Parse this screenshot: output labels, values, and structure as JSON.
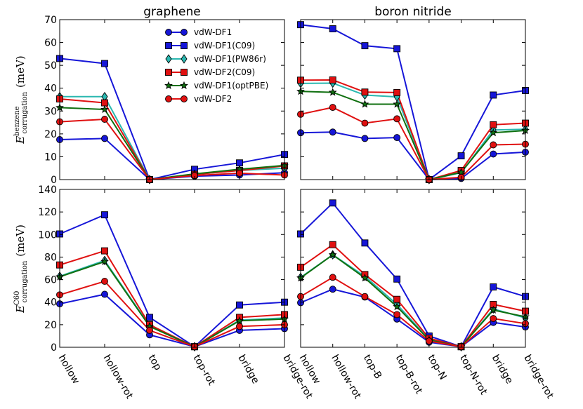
{
  "figure": {
    "y_labels": [
      {
        "main": "E",
        "sup": "benzene",
        "sub": "corrugation",
        "unit": "(meV)"
      },
      {
        "main": "E",
        "sup": "C60",
        "sub": "corrugation",
        "unit": "(meV)"
      }
    ]
  },
  "legend": [
    {
      "name": "vdW-DF1",
      "color": "#1616d8",
      "marker": "circle"
    },
    {
      "name": "vdW-DF1(C09)",
      "color": "#1616d8",
      "marker": "square"
    },
    {
      "name": "vdW-DF1(PW86r)",
      "color": "#2ab8b0",
      "marker": "diamond"
    },
    {
      "name": "vdW-DF2(C09)",
      "color": "#e01010",
      "marker": "square"
    },
    {
      "name": "vdW-DF1(optPBE)",
      "color": "#107010",
      "marker": "star"
    },
    {
      "name": "vdW-DF2",
      "color": "#e01010",
      "marker": "circle"
    }
  ],
  "chart_data": [
    {
      "type": "line",
      "panel": "top-left",
      "title": "graphene",
      "categories": [
        "hollow",
        "hollow-rot",
        "top",
        "top-rot",
        "bridge",
        "bridge-rot"
      ],
      "ylim": [
        0,
        70
      ],
      "yticks": [
        0,
        10,
        20,
        30,
        40,
        50,
        60,
        70
      ],
      "ylabel": "benzene",
      "series": [
        {
          "name": "vdW-DF1",
          "values": [
            17.5,
            18,
            0,
            1.5,
            2,
            3
          ]
        },
        {
          "name": "vdW-DF1(C09)",
          "values": [
            53,
            50.8,
            0,
            4.5,
            7.3,
            11
          ]
        },
        {
          "name": "vdW-DF1(PW86r)",
          "values": [
            36.3,
            36.3,
            0,
            2.3,
            4,
            5
          ]
        },
        {
          "name": "vdW-DF2(C09)",
          "values": [
            35.3,
            33.6,
            0,
            2.3,
            4,
            6
          ]
        },
        {
          "name": "vdW-DF1(optPBE)",
          "values": [
            31.5,
            30.7,
            0,
            2.5,
            4.5,
            6.2
          ]
        },
        {
          "name": "vdW-DF2",
          "values": [
            25.3,
            26.4,
            0,
            1.8,
            2.8,
            2
          ]
        }
      ]
    },
    {
      "type": "line",
      "panel": "top-right",
      "title": "boron nitride",
      "categories": [
        "hollow",
        "hollow-rot",
        "top-B",
        "top-B-rot",
        "top-N",
        "top-N-rot",
        "bridge",
        "bridge-rot"
      ],
      "ylim": [
        0,
        70
      ],
      "yticks": [
        0,
        10,
        20,
        30,
        40,
        50,
        60,
        70
      ],
      "series": [
        {
          "name": "vdW-DF1",
          "values": [
            20.5,
            20.8,
            18,
            18.4,
            0,
            0.5,
            11.2,
            12
          ]
        },
        {
          "name": "vdW-DF1(C09)",
          "values": [
            67.8,
            66,
            58.6,
            57.3,
            0,
            10.4,
            37,
            39
          ]
        },
        {
          "name": "vdW-DF1(PW86r)",
          "values": [
            42.1,
            42.2,
            37,
            36.2,
            0,
            3,
            21.7,
            22
          ]
        },
        {
          "name": "vdW-DF2(C09)",
          "values": [
            43.5,
            43.6,
            38.3,
            38.1,
            0,
            4,
            24,
            24.7
          ]
        },
        {
          "name": "vdW-DF1(optPBE)",
          "values": [
            38.6,
            38.2,
            33,
            33,
            0,
            3.2,
            20.5,
            21.5
          ]
        },
        {
          "name": "vdW-DF2",
          "values": [
            28.6,
            31.6,
            24.7,
            26.6,
            0,
            1,
            15.2,
            15.5
          ]
        }
      ]
    },
    {
      "type": "line",
      "panel": "bottom-left",
      "title": "",
      "categories": [
        "hollow",
        "hollow-rot",
        "top",
        "top-rot",
        "bridge",
        "bridge-rot"
      ],
      "ylim": [
        0,
        140
      ],
      "yticks": [
        0,
        20,
        40,
        60,
        80,
        100,
        120,
        140
      ],
      "ylabel": "C60",
      "series": [
        {
          "name": "vdW-DF1",
          "values": [
            38.5,
            47,
            11,
            0.5,
            15,
            16.5
          ]
        },
        {
          "name": "vdW-DF1(C09)",
          "values": [
            100.5,
            117.5,
            26.5,
            0.5,
            37.5,
            40
          ]
        },
        {
          "name": "vdW-DF1(PW86r)",
          "values": [
            63,
            77,
            19,
            0.5,
            24,
            26
          ]
        },
        {
          "name": "vdW-DF2(C09)",
          "values": [
            73,
            85.5,
            20,
            0.5,
            26.5,
            29
          ]
        },
        {
          "name": "vdW-DF1(optPBE)",
          "values": [
            62.5,
            76,
            18.5,
            0.5,
            23.5,
            25
          ]
        },
        {
          "name": "vdW-DF2",
          "values": [
            46.5,
            58.5,
            15,
            0.5,
            18.5,
            20
          ]
        }
      ]
    },
    {
      "type": "line",
      "panel": "bottom-right",
      "title": "",
      "categories": [
        "hollow",
        "hollow-rot",
        "top-B",
        "top-B-rot",
        "top-N",
        "top-N-rot",
        "bridge",
        "bridge-rot"
      ],
      "ylim": [
        0,
        140
      ],
      "yticks": [
        0,
        20,
        40,
        60,
        80,
        100,
        120,
        140
      ],
      "series": [
        {
          "name": "vdW-DF1",
          "values": [
            39.5,
            51.5,
            44.5,
            25,
            4.5,
            0.5,
            22,
            18
          ]
        },
        {
          "name": "vdW-DF1(C09)",
          "values": [
            100.5,
            128,
            92.5,
            60.5,
            10,
            0.5,
            53.5,
            45
          ]
        },
        {
          "name": "vdW-DF1(PW86r)",
          "values": [
            62,
            82,
            63,
            38,
            7,
            0.5,
            34,
            26
          ]
        },
        {
          "name": "vdW-DF2(C09)",
          "values": [
            71,
            91,
            64.5,
            42.5,
            8,
            0.5,
            38,
            32
          ]
        },
        {
          "name": "vdW-DF1(optPBE)",
          "values": [
            61.5,
            82,
            61.5,
            36,
            6.5,
            0.5,
            33,
            27
          ]
        },
        {
          "name": "vdW-DF2",
          "values": [
            45,
            62,
            45,
            29,
            5.5,
            0.5,
            25.5,
            21
          ]
        }
      ]
    }
  ]
}
